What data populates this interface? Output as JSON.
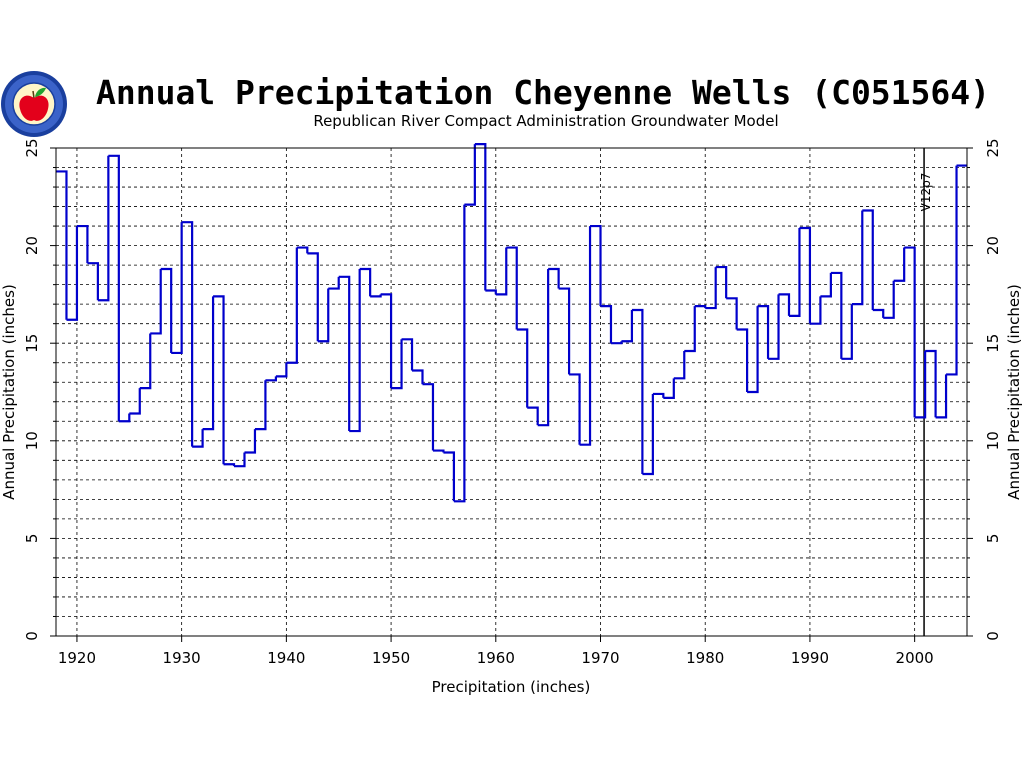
{
  "header": {
    "title": "Annual Precipitation Cheyenne Wells (C051564)",
    "subtitle": "Republican River Compact Administration Groundwater Model"
  },
  "logo": {
    "name": "apple-seal-logo",
    "colors": {
      "ring": "#1a3f9e",
      "apple": "#e3001b",
      "leaf": "#22a22e",
      "inner": "#fff5c8"
    }
  },
  "colors": {
    "series": "#0000cc",
    "grid": "#000000",
    "axis": "#000000"
  },
  "chart_data": {
    "type": "line",
    "step": true,
    "title": "Annual Precipitation Cheyenne Wells (C051564)",
    "subtitle": "Republican River Compact Administration Groundwater Model",
    "xlabel": "Precipitation (inches)",
    "ylabel": "Annual Precipitation (inches)",
    "ylabel_right": "Annual Precipitation (inches)",
    "xlim": [
      1918,
      2005
    ],
    "ylim": [
      0,
      25
    ],
    "xticks": [
      1920,
      1930,
      1940,
      1950,
      1960,
      1970,
      1980,
      1990,
      2000
    ],
    "yticks": [
      0,
      5,
      10,
      15,
      20,
      25
    ],
    "grid": true,
    "annotation": {
      "text": "V12p7",
      "x": 2000.9
    },
    "series": [
      {
        "x": [
          1918,
          1919,
          1920,
          1921,
          1922,
          1923,
          1924,
          1925,
          1926,
          1927,
          1928,
          1929,
          1930,
          1931,
          1932,
          1933,
          1934,
          1935,
          1936,
          1937,
          1938,
          1939,
          1940,
          1941,
          1942,
          1943,
          1944,
          1945,
          1946,
          1947,
          1948,
          1949,
          1950,
          1951,
          1952,
          1953,
          1954,
          1955,
          1956,
          1957,
          1958,
          1959,
          1960,
          1961,
          1962,
          1963,
          1964,
          1965,
          1966,
          1967,
          1968,
          1969,
          1970,
          1971,
          1972,
          1973,
          1974,
          1975,
          1976,
          1977,
          1978,
          1979,
          1980,
          1981,
          1982,
          1983,
          1984,
          1985,
          1986,
          1987,
          1988,
          1989,
          1990,
          1991,
          1992,
          1993,
          1994,
          1995,
          1996,
          1997,
          1998,
          1999,
          2000,
          2001,
          2002,
          2003,
          2004
        ],
        "values": [
          23.8,
          16.2,
          21.0,
          19.1,
          17.2,
          24.6,
          11.0,
          11.4,
          12.7,
          15.5,
          18.8,
          14.5,
          21.2,
          9.7,
          10.6,
          17.4,
          8.8,
          8.7,
          9.4,
          10.6,
          13.1,
          13.3,
          14.0,
          19.9,
          19.6,
          15.1,
          17.8,
          18.4,
          10.5,
          18.8,
          17.4,
          17.5,
          12.7,
          15.2,
          13.6,
          12.9,
          9.5,
          9.4,
          6.9,
          22.1,
          25.2,
          17.7,
          17.5,
          19.9,
          15.7,
          11.7,
          10.8,
          18.8,
          17.8,
          13.4,
          9.8,
          21.0,
          16.9,
          15.0,
          15.1,
          16.7,
          8.3,
          12.4,
          12.2,
          13.2,
          14.6,
          16.9,
          16.8,
          18.9,
          17.3,
          15.7,
          12.5,
          16.9,
          14.2,
          17.5,
          16.4,
          20.9,
          16.0,
          17.4,
          18.6,
          14.2,
          17.0,
          21.8,
          16.7,
          16.3,
          18.2,
          19.9,
          11.2,
          14.6,
          11.2,
          13.4,
          24.1
        ]
      }
    ]
  }
}
